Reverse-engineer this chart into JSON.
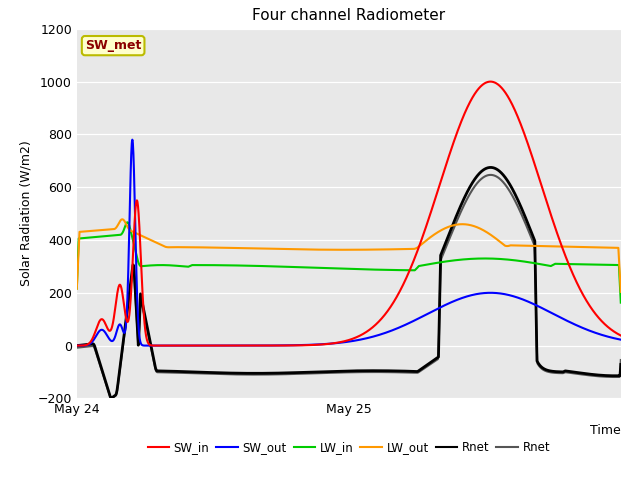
{
  "title": "Four channel Radiometer",
  "ylabel": "Solar Radiation (W/m2)",
  "xlabel": "Time",
  "ylim": [
    -200,
    1200
  ],
  "yticks": [
    -200,
    0,
    200,
    400,
    600,
    800,
    1000,
    1200
  ],
  "bg_color": "#e8e8e8",
  "plot_bg": "#e8e8e8",
  "annotation_text": "SW_met",
  "annotation_fgcolor": "#8B0000",
  "annotation_bgcolor": "#ffffcc",
  "annotation_edgecolor": "#bbbb00",
  "series": {
    "SW_in": {
      "color": "#ff0000",
      "lw": 1.5
    },
    "SW_out": {
      "color": "#0000ff",
      "lw": 1.5
    },
    "LW_in": {
      "color": "#00cc00",
      "lw": 1.5
    },
    "LW_out": {
      "color": "#ff9900",
      "lw": 1.5
    },
    "Rnet_black": {
      "color": "#000000",
      "lw": 2.0
    },
    "Rnet_dark": {
      "color": "#555555",
      "lw": 1.5
    }
  },
  "legend": [
    {
      "label": "SW_in",
      "color": "#ff0000",
      "ls": "-"
    },
    {
      "label": "SW_out",
      "color": "#0000ff",
      "ls": "-"
    },
    {
      "label": "LW_in",
      "color": "#00cc00",
      "ls": "-"
    },
    {
      "label": "LW_out",
      "color": "#ff9900",
      "ls": "-"
    },
    {
      "label": "Rnet",
      "color": "#000000",
      "ls": "-"
    },
    {
      "label": "Rnet",
      "color": "#555555",
      "ls": "-"
    }
  ],
  "xlim": [
    0,
    48
  ],
  "xtick_positions": [
    0,
    24,
    48
  ],
  "xtick_labels": [
    "May 24",
    "May 25",
    ""
  ]
}
